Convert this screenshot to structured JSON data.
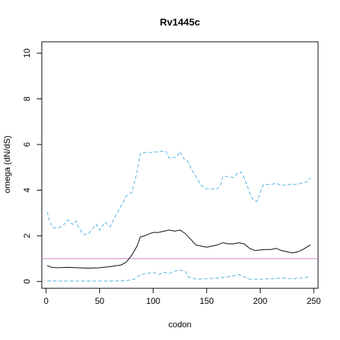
{
  "chart_data": {
    "type": "line",
    "title": "Rv1445c",
    "xlabel": "codon",
    "ylabel": "omega (dN/dS)",
    "xlim": [
      -4,
      254
    ],
    "ylim": [
      -0.3,
      10.5
    ],
    "xticks": [
      0,
      50,
      100,
      150,
      200,
      250
    ],
    "yticks": [
      0,
      2,
      4,
      6,
      8,
      10
    ],
    "grid": false,
    "legend": "none",
    "reference_line": {
      "y": 1,
      "color": "#c77cc7"
    },
    "series": [
      {
        "role": "estimate",
        "color": "#000000",
        "dash": "solid",
        "points": [
          [
            1,
            0.7
          ],
          [
            5,
            0.62
          ],
          [
            10,
            0.6
          ],
          [
            20,
            0.62
          ],
          [
            30,
            0.6
          ],
          [
            40,
            0.58
          ],
          [
            50,
            0.6
          ],
          [
            60,
            0.65
          ],
          [
            70,
            0.72
          ],
          [
            75,
            0.85
          ],
          [
            80,
            1.15
          ],
          [
            85,
            1.55
          ],
          [
            88,
            1.95
          ],
          [
            92,
            2.0
          ],
          [
            97,
            2.1
          ],
          [
            100,
            2.15
          ],
          [
            105,
            2.15
          ],
          [
            110,
            2.2
          ],
          [
            115,
            2.25
          ],
          [
            120,
            2.2
          ],
          [
            125,
            2.25
          ],
          [
            130,
            2.1
          ],
          [
            135,
            1.85
          ],
          [
            140,
            1.6
          ],
          [
            145,
            1.55
          ],
          [
            150,
            1.5
          ],
          [
            155,
            1.55
          ],
          [
            160,
            1.6
          ],
          [
            165,
            1.7
          ],
          [
            170,
            1.65
          ],
          [
            175,
            1.65
          ],
          [
            180,
            1.7
          ],
          [
            185,
            1.65
          ],
          [
            190,
            1.45
          ],
          [
            195,
            1.35
          ],
          [
            200,
            1.38
          ],
          [
            205,
            1.4
          ],
          [
            210,
            1.4
          ],
          [
            215,
            1.45
          ],
          [
            220,
            1.35
          ],
          [
            225,
            1.3
          ],
          [
            230,
            1.25
          ],
          [
            235,
            1.3
          ],
          [
            240,
            1.4
          ],
          [
            245,
            1.55
          ],
          [
            247,
            1.6
          ]
        ]
      },
      {
        "role": "upper",
        "color": "#4fb0e0",
        "dash": "dashed",
        "points": [
          [
            1,
            3.05
          ],
          [
            3,
            2.7
          ],
          [
            6,
            2.35
          ],
          [
            12,
            2.35
          ],
          [
            17,
            2.5
          ],
          [
            20,
            2.7
          ],
          [
            25,
            2.5
          ],
          [
            28,
            2.65
          ],
          [
            30,
            2.4
          ],
          [
            35,
            2.05
          ],
          [
            40,
            2.1
          ],
          [
            43,
            2.3
          ],
          [
            47,
            2.5
          ],
          [
            50,
            2.25
          ],
          [
            55,
            2.6
          ],
          [
            60,
            2.4
          ],
          [
            65,
            2.9
          ],
          [
            70,
            3.3
          ],
          [
            75,
            3.75
          ],
          [
            80,
            3.9
          ],
          [
            85,
            4.8
          ],
          [
            88,
            5.6
          ],
          [
            90,
            5.65
          ],
          [
            100,
            5.65
          ],
          [
            106,
            5.7
          ],
          [
            112,
            5.7
          ],
          [
            115,
            5.4
          ],
          [
            122,
            5.45
          ],
          [
            125,
            5.7
          ],
          [
            128,
            5.4
          ],
          [
            132,
            5.3
          ],
          [
            136,
            4.9
          ],
          [
            140,
            4.6
          ],
          [
            145,
            4.2
          ],
          [
            150,
            4.05
          ],
          [
            155,
            4.05
          ],
          [
            160,
            4.05
          ],
          [
            163,
            4.2
          ],
          [
            165,
            4.6
          ],
          [
            170,
            4.6
          ],
          [
            175,
            4.55
          ],
          [
            178,
            4.7
          ],
          [
            182,
            4.8
          ],
          [
            185,
            4.55
          ],
          [
            190,
            3.9
          ],
          [
            193,
            3.6
          ],
          [
            197,
            3.5
          ],
          [
            200,
            3.9
          ],
          [
            203,
            4.25
          ],
          [
            210,
            4.25
          ],
          [
            215,
            4.3
          ],
          [
            220,
            4.2
          ],
          [
            225,
            4.25
          ],
          [
            232,
            4.25
          ],
          [
            238,
            4.3
          ],
          [
            242,
            4.35
          ],
          [
            245,
            4.4
          ],
          [
            247,
            4.55
          ]
        ]
      },
      {
        "role": "lower",
        "color": "#4fb0e0",
        "dash": "dashed",
        "points": [
          [
            1,
            0.03
          ],
          [
            10,
            0.02
          ],
          [
            20,
            0.02
          ],
          [
            40,
            0.02
          ],
          [
            60,
            0.02
          ],
          [
            75,
            0.03
          ],
          [
            82,
            0.1
          ],
          [
            88,
            0.3
          ],
          [
            95,
            0.35
          ],
          [
            100,
            0.4
          ],
          [
            105,
            0.3
          ],
          [
            110,
            0.4
          ],
          [
            115,
            0.35
          ],
          [
            120,
            0.45
          ],
          [
            125,
            0.5
          ],
          [
            130,
            0.45
          ],
          [
            133,
            0.2
          ],
          [
            140,
            0.1
          ],
          [
            150,
            0.12
          ],
          [
            160,
            0.15
          ],
          [
            170,
            0.2
          ],
          [
            180,
            0.3
          ],
          [
            185,
            0.2
          ],
          [
            190,
            0.1
          ],
          [
            200,
            0.1
          ],
          [
            210,
            0.12
          ],
          [
            220,
            0.15
          ],
          [
            230,
            0.12
          ],
          [
            240,
            0.15
          ],
          [
            247,
            0.22
          ]
        ]
      }
    ]
  }
}
